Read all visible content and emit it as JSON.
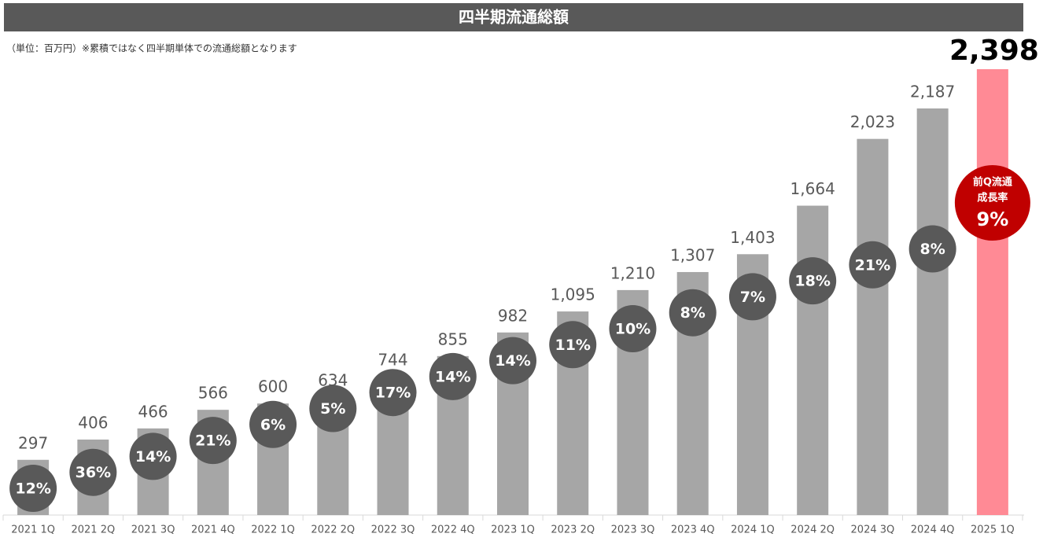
{
  "chart_data": {
    "type": "bar",
    "title": "四半期流通総額",
    "subtitle": "（単位：百万円）※累積ではなく四半期単体での流通総額となります",
    "categories": [
      "2021 1Q",
      "2021 2Q",
      "2021 3Q",
      "2021 4Q",
      "2022 1Q",
      "2022 2Q",
      "2022 3Q",
      "2022 4Q",
      "2023 1Q",
      "2023 2Q",
      "2023 3Q",
      "2023 4Q",
      "2024 1Q",
      "2024 2Q",
      "2024 3Q",
      "2024 4Q",
      "2025 1Q"
    ],
    "series": [
      {
        "name": "四半期流通総額",
        "color": "#a6a6a6",
        "highlight_color": "#ff8a95",
        "values": [
          297,
          406,
          466,
          566,
          600,
          634,
          744,
          855,
          982,
          1095,
          1210,
          1307,
          1403,
          1664,
          2023,
          2187,
          2398
        ],
        "value_labels": [
          "297",
          "406",
          "466",
          "566",
          "600",
          "634",
          "744",
          "855",
          "982",
          "1,095",
          "1,210",
          "1,307",
          "1,403",
          "1,664",
          "2,023",
          "2,187",
          "2,398"
        ]
      },
      {
        "name": "前Q流通成長率",
        "color": "#595959",
        "highlight_color": "#c00000",
        "values": [
          12,
          36,
          14,
          21,
          6,
          5,
          17,
          14,
          14,
          11,
          10,
          8,
          7,
          18,
          21,
          8,
          9
        ],
        "value_labels": [
          "12%",
          "36%",
          "14%",
          "21%",
          "6%",
          "5%",
          "17%",
          "14%",
          "14%",
          "11%",
          "10%",
          "8%",
          "7%",
          "18%",
          "21%",
          "8%",
          "9%"
        ]
      }
    ],
    "callout": [
      "前Q流通",
      "成長率"
    ]
  }
}
